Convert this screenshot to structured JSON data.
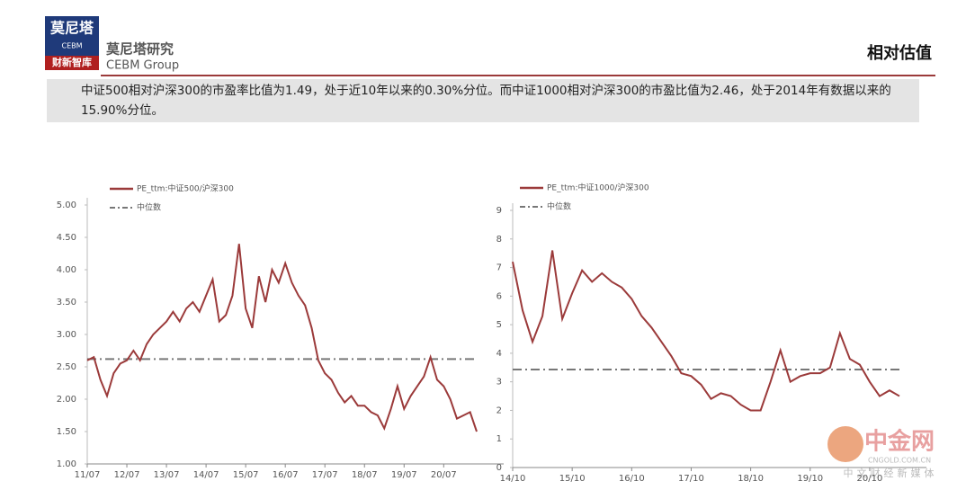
{
  "header": {
    "logo_main": "莫尼塔",
    "logo_sub": "CEBM",
    "logo_band": "财新智库",
    "org_name": "莫尼塔研究",
    "org_group": "CEBM Group",
    "page_title": "相对估值"
  },
  "summary": "中证500相对沪深300的市盈率比值为1.49，处于近10年以来的0.30%分位。而中证1000相对沪深300的市盈比值为2.46，处于2014年有数据以来的15.90%分位。",
  "watermark": {
    "name": "中金网",
    "url": "CNGOLD.COM.CN",
    "tagline": "中文财经新媒体"
  },
  "chart_data": [
    {
      "type": "line",
      "categories": [
        "11/07",
        null,
        null,
        null,
        null,
        null,
        "12/07",
        null,
        null,
        null,
        null,
        null,
        "13/07",
        null,
        null,
        null,
        null,
        null,
        "14/07",
        null,
        null,
        null,
        null,
        null,
        "15/07",
        null,
        null,
        null,
        null,
        null,
        "16/07",
        null,
        null,
        null,
        null,
        null,
        "17/07",
        null,
        null,
        null,
        null,
        null,
        "18/07",
        null,
        null,
        null,
        null,
        null,
        "19/07",
        null,
        null,
        null,
        null,
        null,
        "20/07",
        null,
        null,
        null,
        null,
        null
      ],
      "series": [
        {
          "name": "PE_ttm:中证500/沪深300",
          "color": "#9b3a3a",
          "values": [
            2.6,
            2.65,
            2.3,
            2.05,
            2.4,
            2.55,
            2.6,
            2.75,
            2.6,
            2.85,
            3.0,
            3.1,
            3.2,
            3.35,
            3.2,
            3.4,
            3.5,
            3.35,
            3.6,
            3.85,
            3.2,
            3.3,
            3.6,
            4.4,
            3.4,
            3.1,
            3.9,
            3.5,
            4.0,
            3.8,
            4.1,
            3.8,
            3.6,
            3.45,
            3.1,
            2.6,
            2.4,
            2.3,
            2.1,
            1.95,
            2.05,
            1.9,
            1.9,
            1.8,
            1.75,
            1.55,
            1.85,
            2.2,
            1.85,
            2.05,
            2.2,
            2.35,
            2.65,
            2.3,
            2.2,
            2.0,
            1.7,
            1.75,
            1.8,
            1.5
          ]
        }
      ],
      "reference_lines": [
        {
          "name": "中位数",
          "value": 2.62,
          "color": "#777777"
        }
      ],
      "ylim": [
        1,
        5
      ],
      "yticks": [
        {
          "value": 1,
          "label": "1.00"
        },
        {
          "value": 1.5,
          "label": "1.50"
        },
        {
          "value": 2,
          "label": "2.00"
        },
        {
          "value": 2.5,
          "label": "2.50"
        },
        {
          "value": 3,
          "label": "3.00"
        },
        {
          "value": 3.5,
          "label": "3.50"
        },
        {
          "value": 4,
          "label": "4.00"
        },
        {
          "value": 4.5,
          "label": "4.50"
        },
        {
          "value": 5,
          "label": "5.00"
        }
      ]
    },
    {
      "type": "line",
      "categories": [
        "14/10",
        null,
        null,
        null,
        null,
        null,
        "15/10",
        null,
        null,
        null,
        null,
        null,
        "16/10",
        null,
        null,
        null,
        null,
        null,
        "17/10",
        null,
        null,
        null,
        null,
        null,
        "18/10",
        null,
        null,
        null,
        null,
        null,
        "19/10",
        null,
        null,
        null,
        null,
        null,
        "20/10",
        null,
        null,
        null
      ],
      "series": [
        {
          "name": "PE_ttm:中证1000/沪深300",
          "color": "#9b3a3a",
          "values": [
            7.2,
            5.5,
            4.4,
            5.3,
            7.6,
            5.2,
            6.1,
            6.9,
            6.5,
            6.8,
            6.5,
            6.3,
            5.9,
            5.3,
            4.9,
            4.4,
            3.9,
            3.3,
            3.2,
            2.9,
            2.4,
            2.6,
            2.5,
            2.2,
            2.0,
            2.0,
            3.0,
            4.1,
            3.0,
            3.2,
            3.3,
            3.3,
            3.5,
            4.7,
            3.8,
            3.6,
            3.0,
            2.5,
            2.7,
            2.5
          ]
        }
      ],
      "reference_lines": [
        {
          "name": "中位数",
          "value": 3.43,
          "color": "#777777"
        }
      ],
      "ylim": [
        0,
        9
      ],
      "yticks": [
        0,
        1,
        2,
        3,
        4,
        5,
        6,
        7,
        8,
        9
      ]
    }
  ]
}
